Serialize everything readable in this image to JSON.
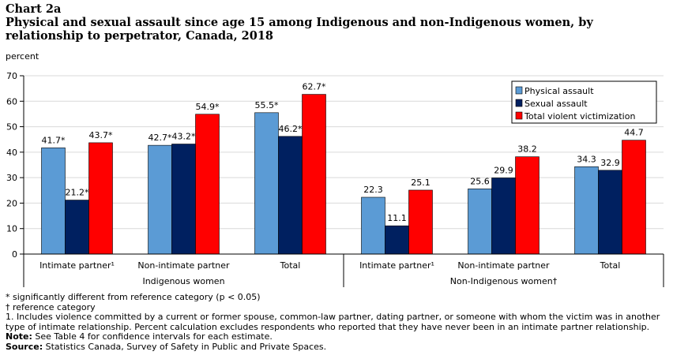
{
  "header": {
    "chart_number": "Chart 2a",
    "title_line1": "Physical and sexual assault since age 15 among Indigenous and non-Indigenous women, by",
    "title_line2": "relationship to perpetrator, Canada, 2018"
  },
  "footnotes": {
    "significance": "* significantly different from reference category (p < 0.05)",
    "reference": "† reference category",
    "note1_line1": "1. Includes violence committed by a current or former spouse, common-law partner, dating partner, or someone with whom the victim was in another",
    "note1_line2": "type of intimate relationship. Percent calculation excludes respondents who reported that they have never been in an intimate partner relationship.",
    "note_label": "Note:",
    "note_text": " See Table 4 for confidence intervals for each estimate.",
    "source_label": "Source:",
    "source_text": " Statistics Canada, Survey of Safety in Public and Private Spaces."
  },
  "colors": {
    "physical": "#5b9bd5",
    "sexual": "#002060",
    "total": "#ff0000",
    "gridline": "#d9d9d9",
    "axis": "#000000"
  },
  "chart_data": {
    "type": "bar",
    "title": "Physical and sexual assault since age 15 among Indigenous and non-Indigenous women, by relationship to perpetrator, Canada, 2018",
    "ylabel": "percent",
    "xlabel": "",
    "ylim": [
      0,
      70
    ],
    "yticks": [
      0,
      10,
      20,
      30,
      40,
      50,
      60,
      70
    ],
    "grid": true,
    "legend_position": "top-right",
    "groups": [
      {
        "label": "Indigenous women",
        "categories": [
          "Intimate partner¹",
          "Non-intimate partner",
          "Total"
        ]
      },
      {
        "label": "Non-Indigenous women†",
        "categories": [
          "Intimate partner¹",
          "Non-intimate partner",
          "Total"
        ]
      }
    ],
    "series": [
      {
        "name": "Physical assault",
        "values": [
          41.7,
          42.7,
          55.5,
          22.3,
          25.6,
          34.3
        ],
        "labels": [
          "41.7*",
          "42.7*",
          "55.5*",
          "22.3",
          "25.6",
          "34.3"
        ]
      },
      {
        "name": "Sexual assault",
        "values": [
          21.2,
          43.2,
          46.2,
          11.1,
          29.9,
          32.9
        ],
        "labels": [
          "21.2*",
          "43.2*",
          "46.2*",
          "11.1",
          "29.9",
          "32.9"
        ]
      },
      {
        "name": "Total violent victimization",
        "values": [
          43.7,
          54.9,
          62.7,
          25.1,
          38.2,
          44.7
        ],
        "labels": [
          "43.7*",
          "54.9*",
          "62.7*",
          "25.1",
          "38.2",
          "44.7"
        ]
      }
    ]
  }
}
